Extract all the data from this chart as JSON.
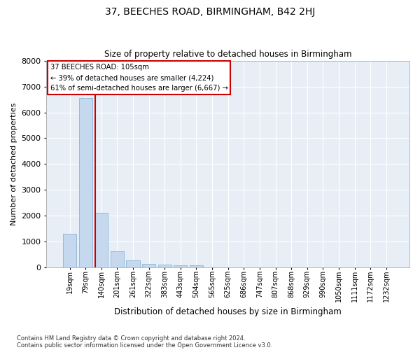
{
  "title": "37, BEECHES ROAD, BIRMINGHAM, B42 2HJ",
  "subtitle": "Size of property relative to detached houses in Birmingham",
  "xlabel": "Distribution of detached houses by size in Birmingham",
  "ylabel": "Number of detached properties",
  "footnote1": "Contains HM Land Registry data © Crown copyright and database right 2024.",
  "footnote2": "Contains public sector information licensed under the Open Government Licence v3.0.",
  "categories": [
    "19sqm",
    "79sqm",
    "140sqm",
    "201sqm",
    "261sqm",
    "322sqm",
    "383sqm",
    "443sqm",
    "504sqm",
    "565sqm",
    "625sqm",
    "686sqm",
    "747sqm",
    "807sqm",
    "868sqm",
    "929sqm",
    "990sqm",
    "1050sqm",
    "1111sqm",
    "1172sqm",
    "1232sqm"
  ],
  "values": [
    1300,
    6550,
    2100,
    620,
    260,
    130,
    90,
    65,
    65,
    0,
    0,
    0,
    0,
    0,
    0,
    0,
    0,
    0,
    0,
    0,
    0
  ],
  "bar_color": "#c5d8ee",
  "bar_edge_color": "#89b4d8",
  "bg_color": "#e8eef6",
  "grid_color": "#ffffff",
  "property_line_x": 0.595,
  "property_label": "37 BEECHES ROAD: 105sqm",
  "annotation_line1": "← 39% of detached houses are smaller (4,224)",
  "annotation_line2": "61% of semi-detached houses are larger (6,667) →",
  "annotation_box_color": "#cc0000",
  "ylim": [
    0,
    8000
  ],
  "yticks": [
    0,
    1000,
    2000,
    3000,
    4000,
    5000,
    6000,
    7000,
    8000
  ]
}
